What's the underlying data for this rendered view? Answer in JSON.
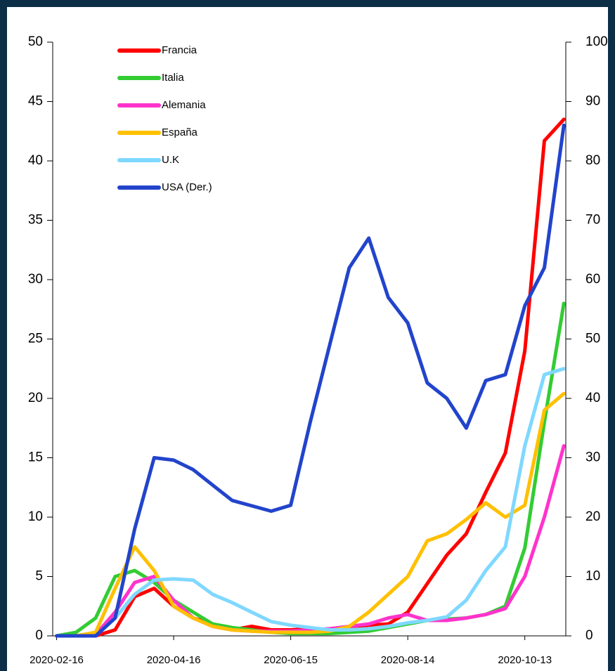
{
  "chart_data": {
    "type": "line",
    "x": [
      "2020-02-16",
      "2020-02-26",
      "2020-03-07",
      "2020-03-17",
      "2020-03-27",
      "2020-04-06",
      "2020-04-16",
      "2020-04-26",
      "2020-05-06",
      "2020-05-16",
      "2020-05-26",
      "2020-06-05",
      "2020-06-15",
      "2020-06-25",
      "2020-07-05",
      "2020-07-15",
      "2020-07-25",
      "2020-08-04",
      "2020-08-14",
      "2020-08-24",
      "2020-09-03",
      "2020-09-13",
      "2020-09-23",
      "2020-10-03",
      "2020-10-13",
      "2020-10-23",
      "2020-11-02"
    ],
    "xlim": [
      "2020-02-14",
      "2020-11-03"
    ],
    "xticks": [
      "2020-02-16",
      "2020-04-16",
      "2020-06-15",
      "2020-08-14",
      "2020-10-13"
    ],
    "ylim": [
      0,
      50
    ],
    "yticks": [
      0,
      5,
      10,
      15,
      20,
      25,
      30,
      35,
      40,
      45,
      50
    ],
    "y2lim": [
      0,
      100
    ],
    "y2ticks": [
      0,
      10,
      20,
      30,
      40,
      50,
      60,
      70,
      80,
      90,
      100
    ],
    "legend": "upper left",
    "series": [
      {
        "name": "Francia",
        "color": "#ff0000",
        "values": [
          0,
          0,
          0,
          0.5,
          3.3,
          4,
          2.5,
          1.5,
          1,
          0.5,
          0.8,
          0.5,
          0.5,
          0.6,
          0.5,
          0.7,
          0.9,
          1,
          2,
          4.4,
          6.8,
          8.6,
          12.1,
          15.4,
          24,
          41.7,
          43.5
        ]
      },
      {
        "name": "Italia",
        "color": "#33cc33",
        "values": [
          0,
          0.3,
          1.5,
          5,
          5.5,
          4.5,
          3,
          2,
          1,
          0.7,
          0.5,
          0.3,
          0.2,
          0.2,
          0.2,
          0.3,
          0.4,
          0.7,
          1,
          1.3,
          1.4,
          1.5,
          1.8,
          2.5,
          7.4,
          18,
          28
        ]
      },
      {
        "name": "Alemania",
        "color": "#ff33cc",
        "values": [
          0,
          0,
          0.1,
          2,
          4.5,
          5,
          3,
          1.5,
          0.8,
          0.5,
          0.4,
          0.4,
          0.4,
          0.5,
          0.6,
          0.8,
          1,
          1.5,
          1.8,
          1.3,
          1.3,
          1.5,
          1.8,
          2.3,
          5,
          10,
          16
        ]
      },
      {
        "name": "España",
        "color": "#ffc000",
        "values": [
          0,
          0,
          0.3,
          4,
          7.5,
          5.5,
          2.5,
          1.5,
          0.8,
          0.5,
          0.4,
          0.3,
          0.3,
          0.3,
          0.4,
          0.8,
          2,
          3.5,
          5,
          8,
          8.6,
          9.8,
          11.2,
          10,
          11,
          19,
          20.4
        ]
      },
      {
        "name": "U.K",
        "color": "#7fd8ff",
        "values": [
          0,
          0,
          0,
          1.5,
          3.5,
          4.7,
          4.8,
          4.7,
          3.5,
          2.8,
          2,
          1.2,
          0.9,
          0.7,
          0.5,
          0.5,
          0.6,
          0.8,
          1.1,
          1.3,
          1.6,
          3,
          5.5,
          7.5,
          16,
          22,
          22.5
        ]
      },
      {
        "name": "USA (Der.)",
        "color": "#2244cc",
        "axis": "y2",
        "values": [
          0,
          0,
          0,
          3,
          18,
          30,
          29.6,
          28,
          25.4,
          22.8,
          21.9,
          21,
          22,
          36,
          49,
          62,
          67,
          57,
          52.7,
          42.6,
          40,
          35,
          43,
          44,
          55.6,
          62,
          86
        ]
      }
    ]
  }
}
